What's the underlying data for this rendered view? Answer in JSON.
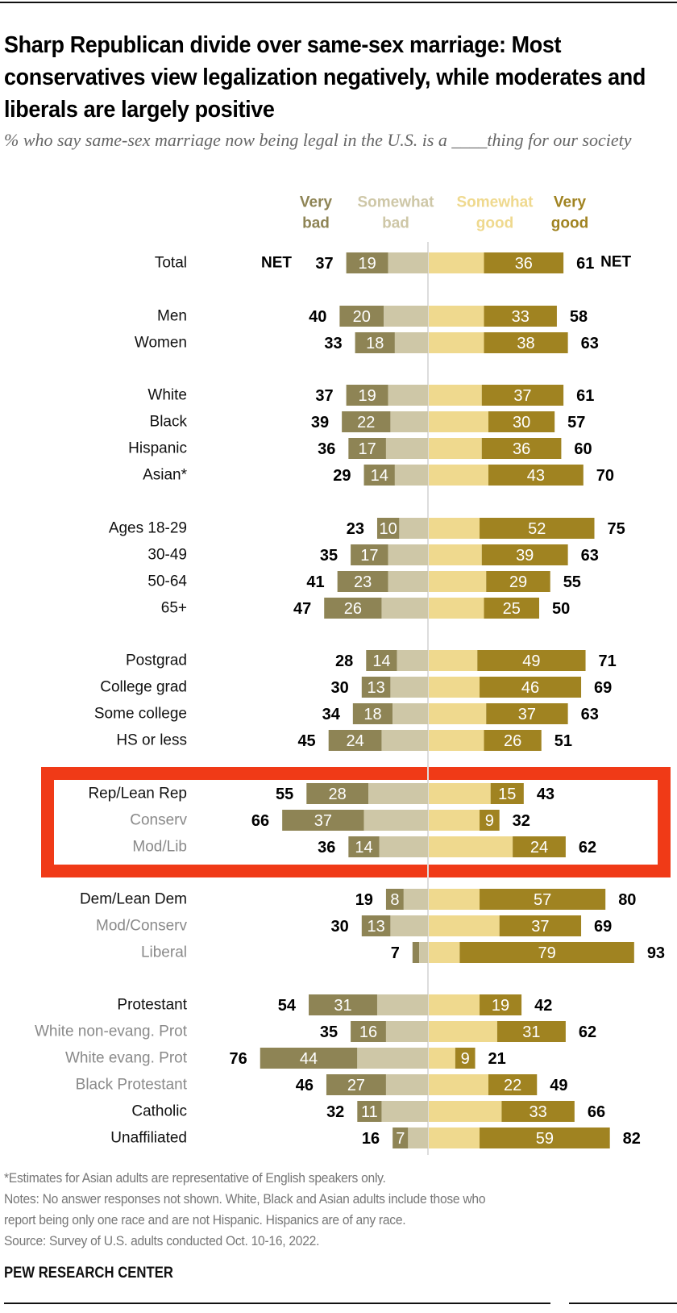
{
  "header": {
    "title": "Sharp Republican divide over same-sex marriage: Most conservatives view legalization negatively, while moderates and liberals are largely positive",
    "subtitle": "% who say same-sex marriage now being legal in the U.S. is a ____thing for our society"
  },
  "colors": {
    "very_bad": "#8E8455",
    "somewhat_bad": "#CEC7A7",
    "somewhat_good": "#EFD98E",
    "very_good": "#A08321",
    "highlight": "#F03A17",
    "axis": "#DDDDDD"
  },
  "chart_data": {
    "type": "bar",
    "subtype": "diverging-stacked",
    "title": "Sharp Republican divide over same-sex marriage: Most conservatives view legalization negatively, while moderates and liberals are largely positive",
    "xlabel": "",
    "ylabel": "",
    "legend": [
      "Very bad",
      "Somewhat bad",
      "Somewhat good",
      "Very good"
    ],
    "legend_placement": "top",
    "net_label": "NET",
    "highlighted_group": [
      "Rep/Lean Rep",
      "Conserv",
      "Mod/Lib"
    ],
    "rows": [
      {
        "label": "Total",
        "muted": false,
        "very_bad": 19,
        "somewhat_bad": 18,
        "net_bad": 37,
        "somewhat_good": 25,
        "very_good": 36,
        "net_good": 61,
        "show_net": true
      },
      {
        "label": "Men",
        "muted": false,
        "very_bad": 20,
        "somewhat_bad": 20,
        "net_bad": 40,
        "somewhat_good": 25,
        "very_good": 33,
        "net_good": 58
      },
      {
        "label": "Women",
        "muted": false,
        "very_bad": 18,
        "somewhat_bad": 15,
        "net_bad": 33,
        "somewhat_good": 25,
        "very_good": 38,
        "net_good": 63
      },
      {
        "label": "White",
        "muted": false,
        "very_bad": 19,
        "somewhat_bad": 18,
        "net_bad": 37,
        "somewhat_good": 24,
        "very_good": 37,
        "net_good": 61
      },
      {
        "label": "Black",
        "muted": false,
        "very_bad": 22,
        "somewhat_bad": 17,
        "net_bad": 39,
        "somewhat_good": 27,
        "very_good": 30,
        "net_good": 57
      },
      {
        "label": "Hispanic",
        "muted": false,
        "very_bad": 17,
        "somewhat_bad": 19,
        "net_bad": 36,
        "somewhat_good": 24,
        "very_good": 36,
        "net_good": 60
      },
      {
        "label": "Asian*",
        "muted": false,
        "very_bad": 14,
        "somewhat_bad": 15,
        "net_bad": 29,
        "somewhat_good": 27,
        "very_good": 43,
        "net_good": 70
      },
      {
        "label": "Ages 18-29",
        "muted": false,
        "very_bad": 10,
        "somewhat_bad": 13,
        "net_bad": 23,
        "somewhat_good": 23,
        "very_good": 52,
        "net_good": 75
      },
      {
        "label": "30-49",
        "muted": false,
        "very_bad": 17,
        "somewhat_bad": 18,
        "net_bad": 35,
        "somewhat_good": 24,
        "very_good": 39,
        "net_good": 63
      },
      {
        "label": "50-64",
        "muted": false,
        "very_bad": 23,
        "somewhat_bad": 18,
        "net_bad": 41,
        "somewhat_good": 26,
        "very_good": 29,
        "net_good": 55
      },
      {
        "label": "65+",
        "muted": false,
        "very_bad": 26,
        "somewhat_bad": 21,
        "net_bad": 47,
        "somewhat_good": 25,
        "very_good": 25,
        "net_good": 50
      },
      {
        "label": "Postgrad",
        "muted": false,
        "very_bad": 14,
        "somewhat_bad": 14,
        "net_bad": 28,
        "somewhat_good": 22,
        "very_good": 49,
        "net_good": 71
      },
      {
        "label": "College grad",
        "muted": false,
        "very_bad": 13,
        "somewhat_bad": 17,
        "net_bad": 30,
        "somewhat_good": 23,
        "very_good": 46,
        "net_good": 69
      },
      {
        "label": "Some college",
        "muted": false,
        "very_bad": 18,
        "somewhat_bad": 16,
        "net_bad": 34,
        "somewhat_good": 26,
        "very_good": 37,
        "net_good": 63
      },
      {
        "label": "HS or less",
        "muted": false,
        "very_bad": 24,
        "somewhat_bad": 21,
        "net_bad": 45,
        "somewhat_good": 25,
        "very_good": 26,
        "net_good": 51
      },
      {
        "label": "Rep/Lean Rep",
        "muted": false,
        "very_bad": 28,
        "somewhat_bad": 27,
        "net_bad": 55,
        "somewhat_good": 28,
        "very_good": 15,
        "net_good": 43
      },
      {
        "label": "Conserv",
        "muted": true,
        "very_bad": 37,
        "somewhat_bad": 29,
        "net_bad": 66,
        "somewhat_good": 23,
        "very_good": 9,
        "net_good": 32
      },
      {
        "label": "Mod/Lib",
        "muted": true,
        "very_bad": 14,
        "somewhat_bad": 22,
        "net_bad": 36,
        "somewhat_good": 38,
        "very_good": 24,
        "net_good": 62
      },
      {
        "label": "Dem/Lean Dem",
        "muted": false,
        "very_bad": 8,
        "somewhat_bad": 11,
        "net_bad": 19,
        "somewhat_good": 23,
        "very_good": 57,
        "net_good": 80
      },
      {
        "label": "Mod/Conserv",
        "muted": true,
        "very_bad": 13,
        "somewhat_bad": 17,
        "net_bad": 30,
        "somewhat_good": 32,
        "very_good": 37,
        "net_good": 69
      },
      {
        "label": "Liberal",
        "muted": true,
        "very_bad": 3,
        "somewhat_bad": 4,
        "net_bad": 7,
        "somewhat_good": 14,
        "very_good": 79,
        "net_good": 93,
        "hide_very_bad_label": true
      },
      {
        "label": "Protestant",
        "muted": false,
        "very_bad": 31,
        "somewhat_bad": 23,
        "net_bad": 54,
        "somewhat_good": 23,
        "very_good": 19,
        "net_good": 42
      },
      {
        "label": "White non-evang. Prot",
        "muted": true,
        "very_bad": 16,
        "somewhat_bad": 19,
        "net_bad": 35,
        "somewhat_good": 31,
        "very_good": 31,
        "net_good": 62
      },
      {
        "label": "White evang. Prot",
        "muted": true,
        "very_bad": 44,
        "somewhat_bad": 32,
        "net_bad": 76,
        "somewhat_good": 12,
        "very_good": 9,
        "net_good": 21
      },
      {
        "label": "Black Protestant",
        "muted": true,
        "very_bad": 27,
        "somewhat_bad": 19,
        "net_bad": 46,
        "somewhat_good": 27,
        "very_good": 22,
        "net_good": 49
      },
      {
        "label": "Catholic",
        "muted": false,
        "very_bad": 11,
        "somewhat_bad": 21,
        "net_bad": 32,
        "somewhat_good": 33,
        "very_good": 33,
        "net_good": 66
      },
      {
        "label": "Unaffiliated",
        "muted": false,
        "very_bad": 7,
        "somewhat_bad": 9,
        "net_bad": 16,
        "somewhat_good": 23,
        "very_good": 59,
        "net_good": 82
      }
    ]
  },
  "legend_labels": {
    "very_bad": [
      "Very",
      "bad"
    ],
    "somewhat_bad": [
      "Somewhat",
      "bad"
    ],
    "somewhat_good": [
      "Somewhat",
      "good"
    ],
    "very_good": [
      "Very",
      "good"
    ]
  },
  "footer": {
    "note1": "*Estimates for Asian adults are representative of English speakers only.",
    "note2": "Notes: No answer responses not shown. White, Black and Asian adults include those who",
    "note3": "report being only one race and are not Hispanic. Hispanics are of any race.",
    "source": "Source: Survey of U.S. adults conducted Oct. 10-16, 2022.",
    "brand": "PEW RESEARCH CENTER"
  }
}
